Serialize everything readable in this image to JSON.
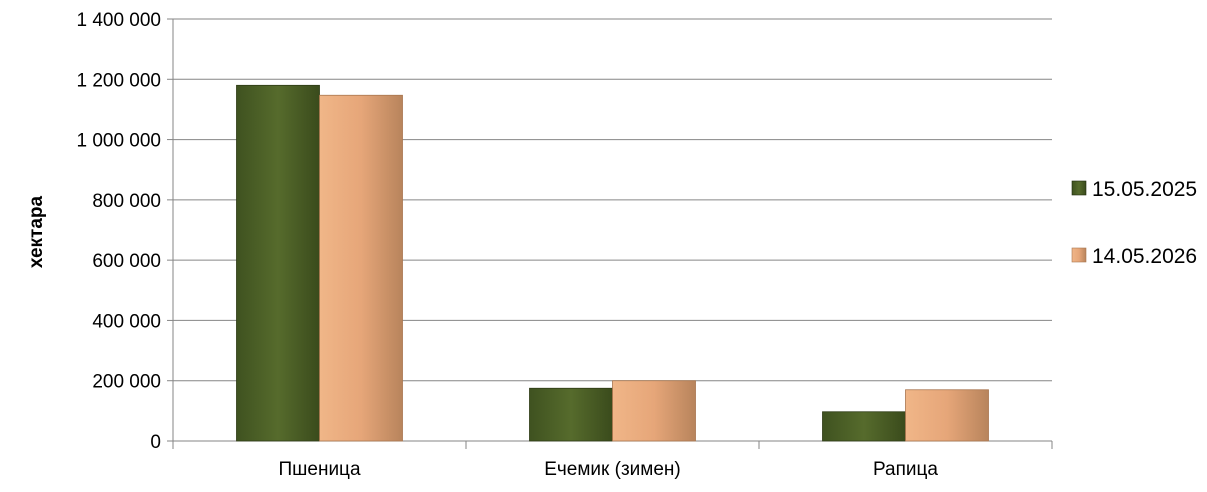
{
  "chart_data": {
    "type": "bar",
    "title": "",
    "xlabel": "",
    "ylabel": "хектара",
    "ylim": [
      0,
      1400000
    ],
    "yticks": [
      0,
      200000,
      400000,
      600000,
      800000,
      1000000,
      1200000,
      1400000
    ],
    "ytick_labels": [
      "0",
      "200 000",
      "400 000",
      "600 000",
      "800 000",
      "1 000 000",
      "1 200 000",
      "1 400 000"
    ],
    "categories": [
      "Пшеница",
      "Ечемик (зимен)",
      "Рапица"
    ],
    "series": [
      {
        "name": "15.05.2025",
        "values": [
          1180000,
          175000,
          97000
        ],
        "color": "#4f6228"
      },
      {
        "name": "14.05.2026",
        "values": [
          1147000,
          200000,
          170000
        ],
        "color": "#e6a679"
      }
    ],
    "grid": true,
    "legend": "right"
  }
}
